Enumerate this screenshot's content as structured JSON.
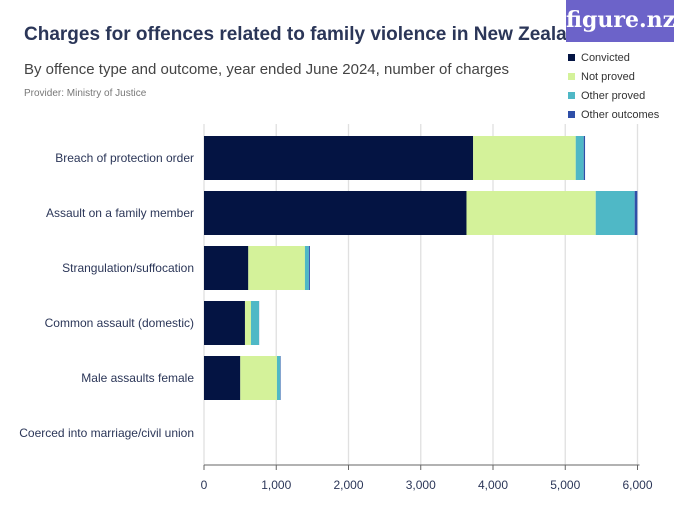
{
  "title": "Charges for offences related to family violence in New Zealand",
  "subtitle": "By offence type and outcome, year ended June 2024, number of charges",
  "provider": "Provider: Ministry of Justice",
  "logo": "figure.nz",
  "chart_data": {
    "type": "bar",
    "orientation": "horizontal",
    "stacked": true,
    "categories": [
      "Breach of protection order",
      "Assault on a family member",
      "Strangulation/suffocation",
      "Common assault (domestic)",
      "Male assaults female",
      "Coerced into marriage/civil union"
    ],
    "series": [
      {
        "name": "Convicted",
        "color": "#041443",
        "values": [
          3725,
          3633,
          613,
          567,
          502,
          0
        ]
      },
      {
        "name": "Not proved",
        "color": "#d4f29a",
        "values": [
          1420,
          1789,
          784,
          83,
          508,
          0
        ]
      },
      {
        "name": "Other proved",
        "color": "#4fb8c6",
        "values": [
          111,
          539,
          55,
          111,
          46,
          0
        ]
      },
      {
        "name": "Other outcomes",
        "color": "#2f4fa8",
        "values": [
          18,
          37,
          14,
          2,
          6,
          0
        ]
      }
    ],
    "xlim": [
      0,
      6000
    ],
    "xticks": [
      "0",
      "1,000",
      "2,000",
      "3,000",
      "4,000",
      "5,000",
      "6,000"
    ],
    "grid": true,
    "legend": "top-right"
  }
}
